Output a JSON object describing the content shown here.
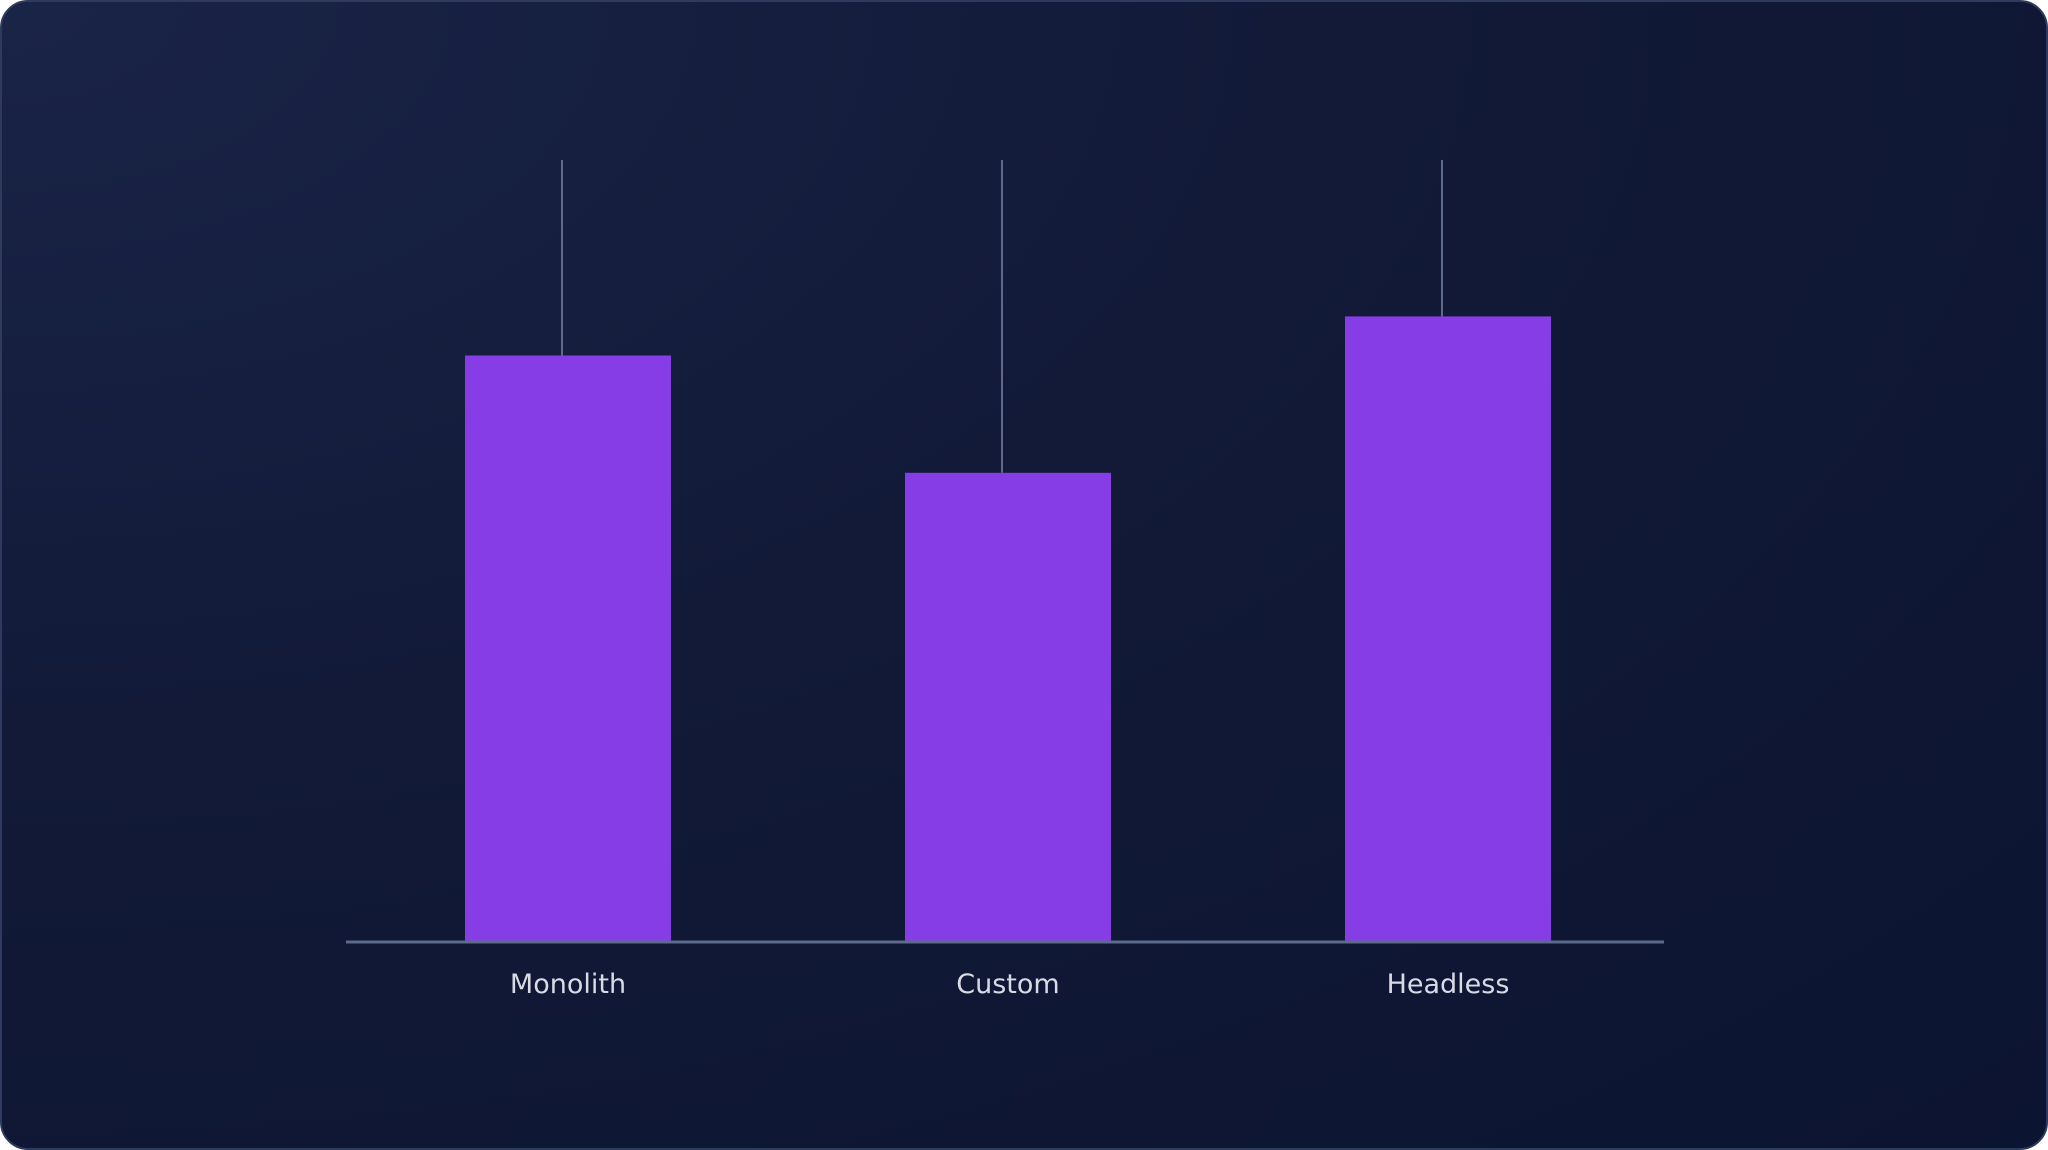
{
  "colors": {
    "background_top": "#1a2447",
    "background_bottom": "#0b1431",
    "bar": "#873de6",
    "line": "#5d6a8c",
    "label": "#d8dbe6"
  },
  "chart_data": {
    "type": "bar",
    "categories": [
      "Monolith",
      "Custom",
      "Headless"
    ],
    "values": [
      75,
      60,
      80
    ],
    "error_upper": [
      100,
      100,
      100
    ],
    "ylim": [
      0,
      100
    ],
    "title": "",
    "xlabel": "",
    "ylabel": "",
    "grid": false,
    "legend": "none"
  }
}
